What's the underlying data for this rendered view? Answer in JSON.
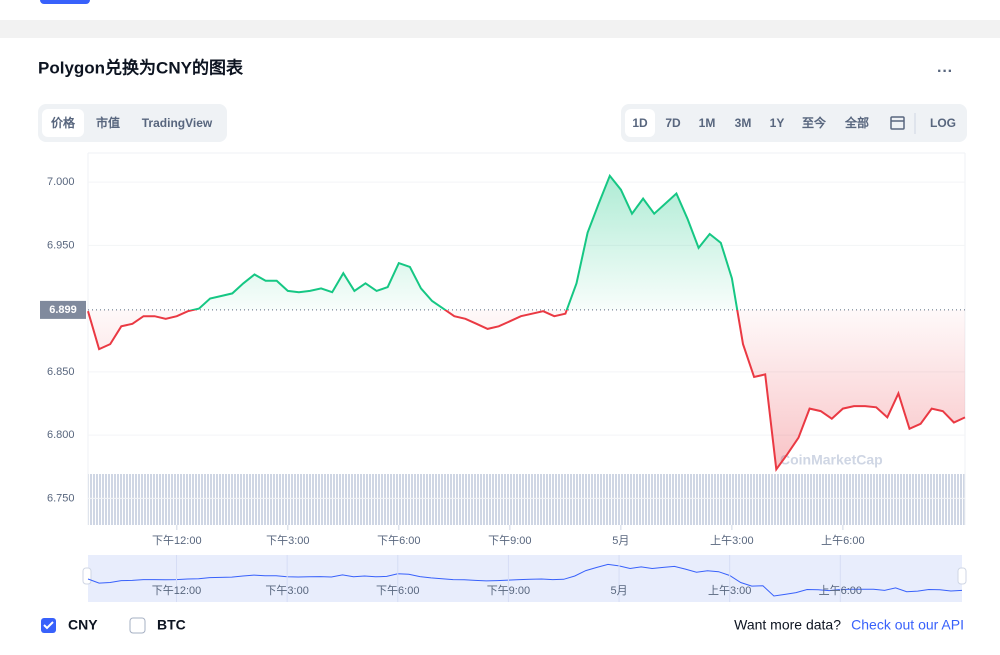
{
  "header": {
    "title": "Polygon兑换为CNY的图表"
  },
  "tabs": [
    "价格",
    "市值",
    "TradingView"
  ],
  "ranges": [
    "1D",
    "7D",
    "1M",
    "3M",
    "1Y",
    "至今",
    "全部",
    "LOG"
  ],
  "watermark": "CoinMarketCap",
  "currencies": [
    "CNY",
    "BTC"
  ],
  "footer": {
    "prompt": "Want more data?",
    "link": "Check out our API"
  },
  "chart_data": {
    "type": "line",
    "categories": [
      null,
      null,
      null,
      null,
      null,
      null,
      null,
      null,
      "下午12:00",
      null,
      null,
      null,
      null,
      null,
      null,
      null,
      null,
      null,
      "下午3:00",
      null,
      null,
      null,
      null,
      null,
      null,
      null,
      null,
      null,
      "下午6:00",
      null,
      null,
      null,
      null,
      null,
      null,
      null,
      null,
      null,
      "下午9:00",
      null,
      null,
      null,
      null,
      null,
      null,
      null,
      null,
      null,
      "5月",
      null,
      null,
      null,
      null,
      null,
      null,
      null,
      null,
      null,
      "上午3:00",
      null,
      null,
      null,
      null,
      null,
      null,
      null,
      null,
      null,
      "上午6:00",
      null,
      null,
      null,
      null,
      null,
      null,
      null,
      null,
      null,
      null,
      null
    ],
    "series": [
      {
        "values": [
          6.898,
          6.868,
          6.872,
          6.886,
          6.888,
          6.894,
          6.894,
          6.892,
          6.894,
          6.898,
          6.9,
          6.908,
          6.91,
          6.912,
          6.92,
          6.927,
          6.922,
          6.922,
          6.914,
          6.913,
          6.914,
          6.916,
          6.913,
          6.928,
          6.914,
          6.92,
          6.914,
          6.917,
          6.936,
          6.933,
          6.916,
          6.906,
          6.9,
          6.894,
          6.892,
          6.888,
          6.884,
          6.886,
          6.89,
          6.894,
          6.896,
          6.898,
          6.894,
          6.896,
          6.92,
          6.96,
          6.983,
          7.005,
          6.994,
          6.975,
          6.987,
          6.975,
          6.983,
          6.991,
          6.971,
          6.948,
          6.959,
          6.952,
          6.924,
          6.872,
          6.846,
          6.848,
          6.773,
          6.785,
          6.798,
          6.821,
          6.819,
          6.813,
          6.821,
          6.823,
          6.823,
          6.822,
          6.814,
          6.833,
          6.805,
          6.809,
          6.821,
          6.819,
          6.81,
          6.814
        ]
      }
    ],
    "up_color": "#16c784",
    "down_color": "#ea3943",
    "nav_color": "#3861fb",
    "baseline": 6.899,
    "ylim": [
      6.729,
      7.023
    ],
    "yticks": [
      {
        "value": 6.75,
        "label": "6.750"
      },
      {
        "value": 6.8,
        "label": "6.800"
      },
      {
        "value": 6.85,
        "label": "6.850"
      },
      {
        "value": 6.95,
        "label": "6.950"
      },
      {
        "value": 7,
        "label": "7.000"
      }
    ]
  }
}
